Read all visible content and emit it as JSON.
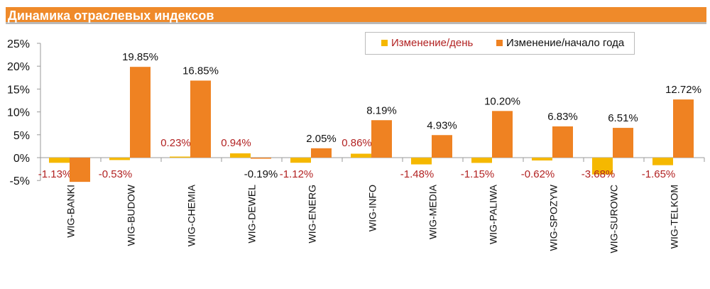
{
  "title": "Динамика отраслевых индексов",
  "chart_data": {
    "type": "bar",
    "title": "Динамика отраслевых индексов",
    "categories": [
      "WIG-BANKI",
      "WIG-BUDOW",
      "WIG-CHEMIA",
      "WIG-DEWEL",
      "WIG-ENERG",
      "WIG-INFO",
      "WIG-MEDIA",
      "WIG-PALIWA",
      "WIG-SPOZYW",
      "WIG-SUROWC",
      "WIG-TELKOM"
    ],
    "series": [
      {
        "name": "Изменение/день",
        "color": "#f5b800",
        "label_color": "#b22222",
        "values": [
          -1.13,
          -0.53,
          0.23,
          0.94,
          -1.12,
          0.86,
          -1.48,
          -1.15,
          -0.62,
          -3.68,
          -1.65
        ],
        "labels": [
          "-1.13%",
          "-0.53%",
          "0.23%",
          "0.94%",
          "-1.12%",
          "0.86%",
          "-1.48%",
          "-1.15%",
          "-0.62%",
          "-3.68%",
          "-1.65%"
        ]
      },
      {
        "name": "Изменение/начало года",
        "color": "#ef8222",
        "label_color": "#111111",
        "values": [
          -5.3,
          19.85,
          16.85,
          -0.19,
          2.05,
          8.19,
          4.93,
          10.2,
          6.83,
          6.51,
          12.72
        ],
        "labels": [
          null,
          "19.85%",
          "16.85%",
          "-0.19%",
          "2.05%",
          "8.19%",
          "4.93%",
          "10.20%",
          "6.83%",
          "6.51%",
          "12.72%"
        ]
      }
    ],
    "yticks": [
      "25%",
      "20%",
      "15%",
      "10%",
      "5%",
      "0%",
      "-5%"
    ],
    "ytick_values": [
      25,
      20,
      15,
      10,
      5,
      0,
      -5
    ],
    "ylim": [
      -5,
      25
    ],
    "legend": "top-right",
    "grid": false
  }
}
